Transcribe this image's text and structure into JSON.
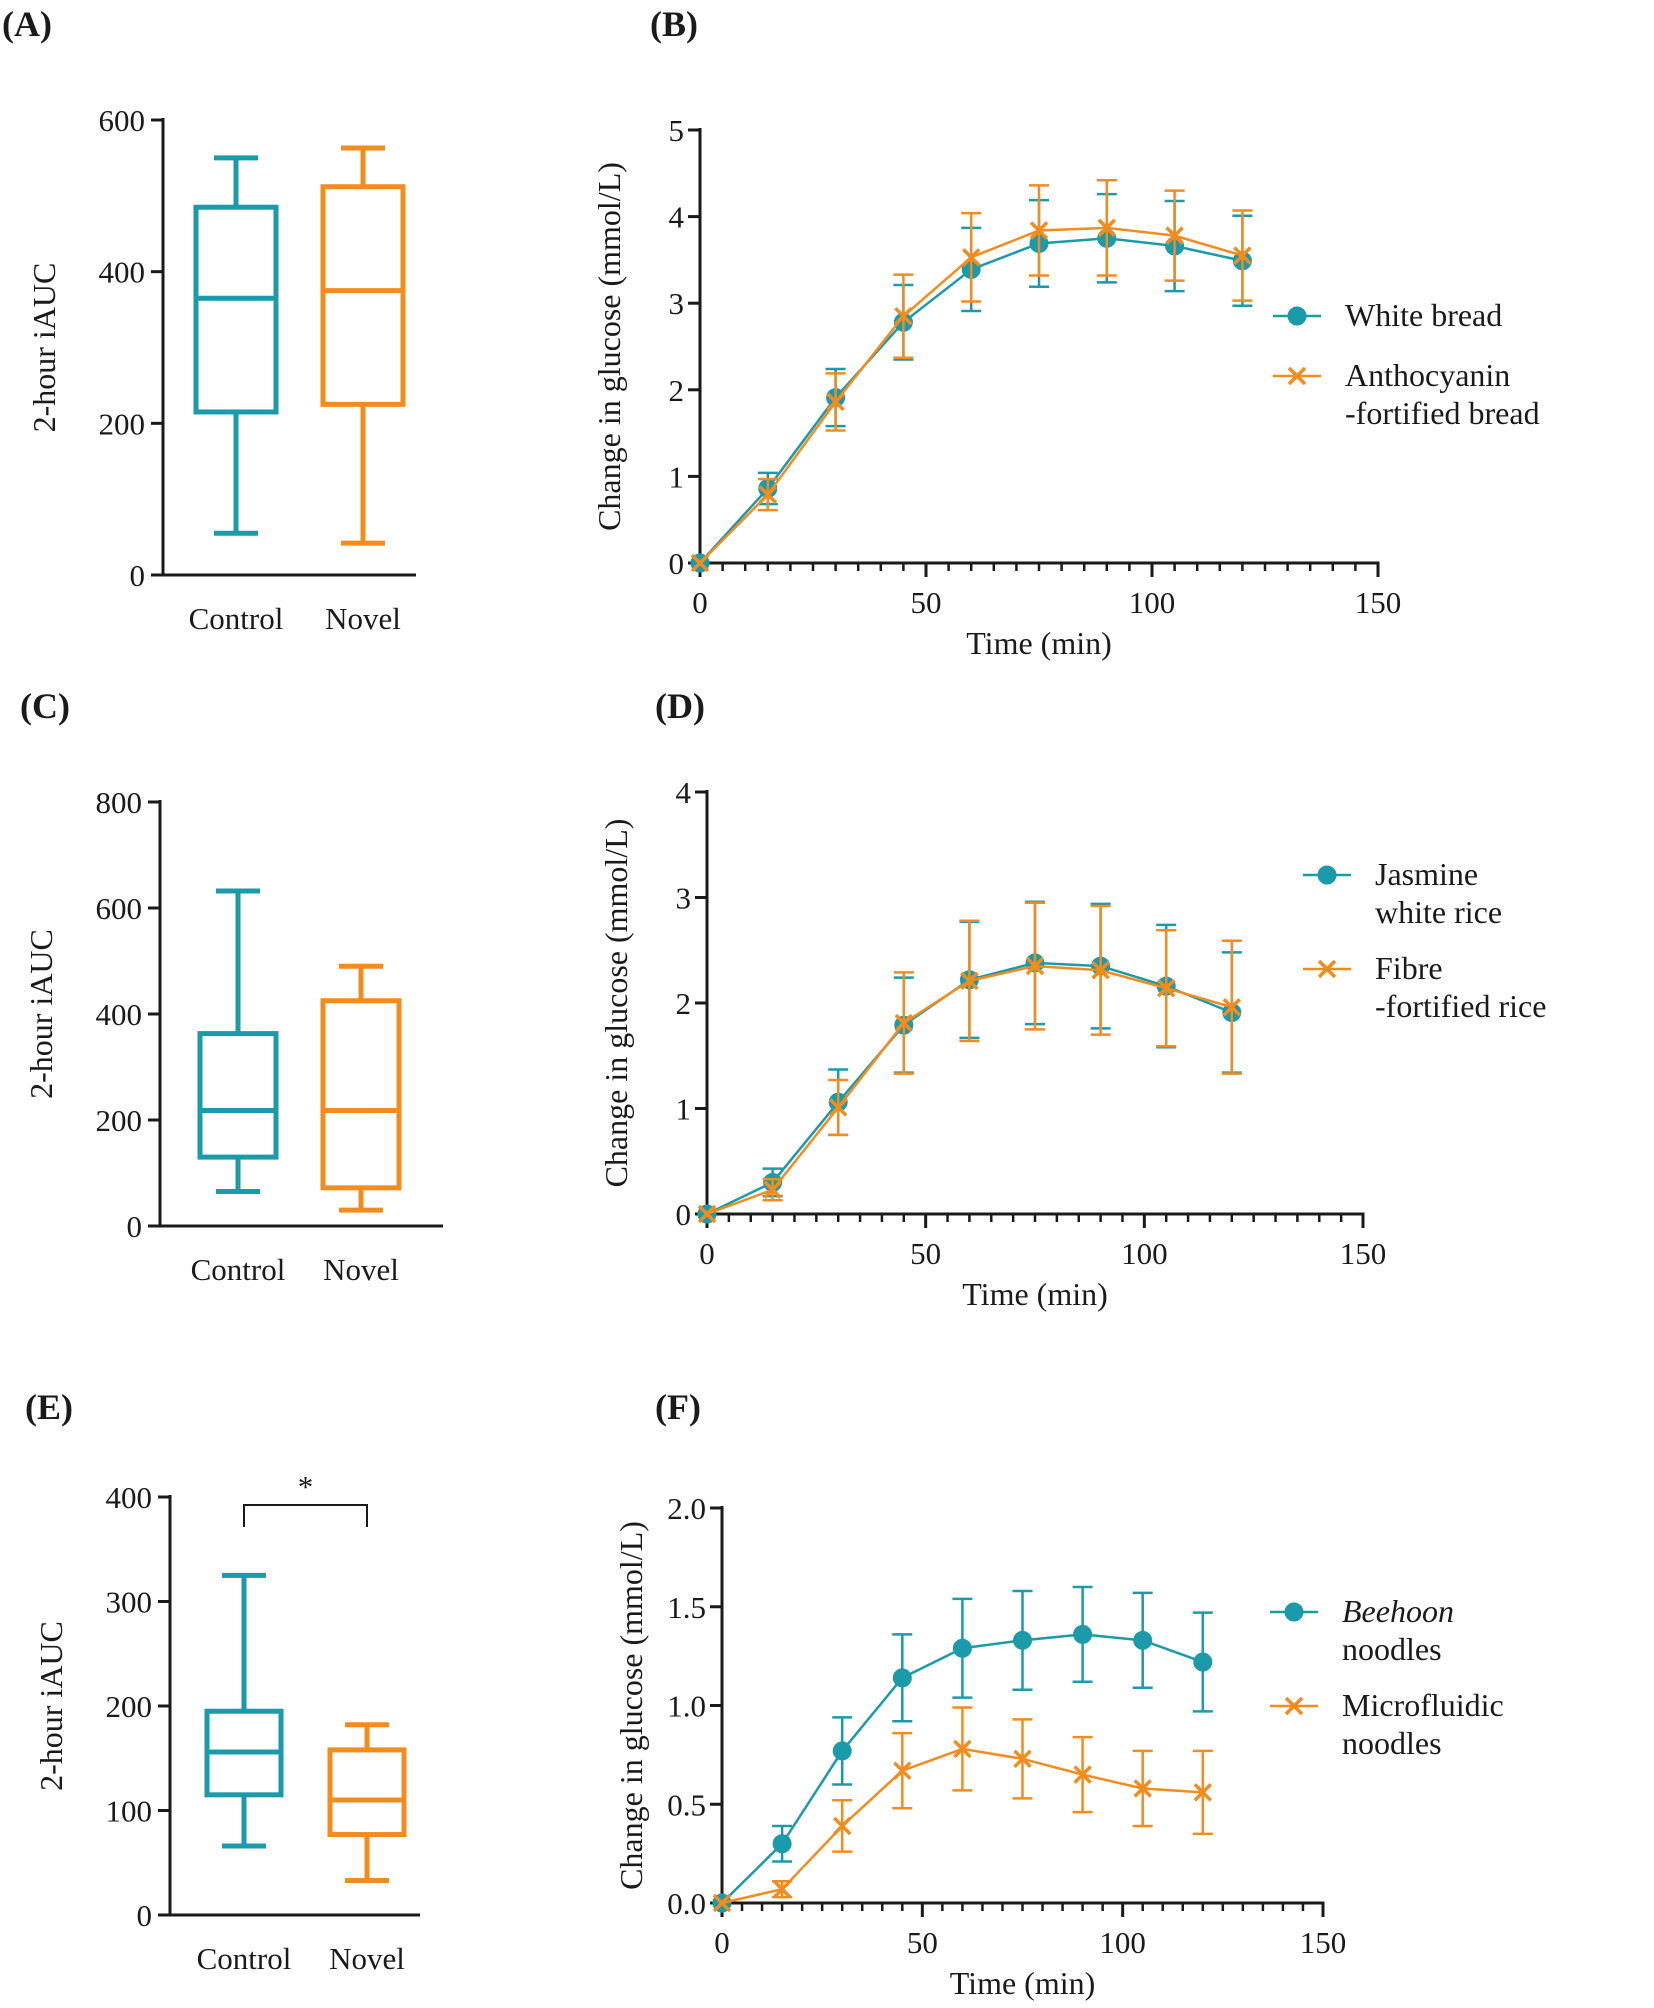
{
  "colors": {
    "teal": "#1b9aaa",
    "orange": "#f28c1e",
    "axis": "#1a1a1a"
  },
  "chart_data": [
    {
      "id": "A",
      "type": "box",
      "label": "(A)",
      "title": "",
      "ylabel": "2-hour iAUC",
      "xlabel": "",
      "ylim": [
        0,
        600
      ],
      "yticks": [
        0,
        200,
        400,
        600
      ],
      "categories": [
        "Control",
        "Novel"
      ],
      "boxes": [
        {
          "name": "Control",
          "min": 55,
          "q1": 215,
          "median": 365,
          "q3": 485,
          "max": 550,
          "color": "#1b9aaa"
        },
        {
          "name": "Novel",
          "min": 42,
          "q1": 225,
          "median": 375,
          "q3": 512,
          "max": 563,
          "color": "#f28c1e"
        }
      ],
      "annotations": []
    },
    {
      "id": "B",
      "type": "line",
      "label": "(B)",
      "title": "",
      "xlabel": "Time (min)",
      "ylabel": "Change in glucose (mmol/L)",
      "xlim": [
        0,
        150
      ],
      "ylim": [
        0,
        5
      ],
      "xticks": [
        0,
        50,
        100,
        150
      ],
      "yticks": [
        0,
        1,
        2,
        3,
        4,
        5
      ],
      "x": [
        0,
        15,
        30,
        45,
        60,
        75,
        90,
        105,
        120
      ],
      "series": [
        {
          "name": "White bread",
          "marker": "circle",
          "color": "#1b9aaa",
          "values": [
            0,
            0.86,
            1.91,
            2.78,
            3.39,
            3.69,
            3.75,
            3.66,
            3.49
          ],
          "errors": [
            0,
            0.18,
            0.33,
            0.43,
            0.48,
            0.5,
            0.51,
            0.52,
            0.52
          ]
        },
        {
          "name": "Anthocyanin\n-fortified bread",
          "marker": "cross",
          "color": "#f28c1e",
          "values": [
            0,
            0.79,
            1.86,
            2.85,
            3.53,
            3.84,
            3.87,
            3.78,
            3.55
          ],
          "errors": [
            0,
            0.18,
            0.33,
            0.48,
            0.51,
            0.52,
            0.55,
            0.52,
            0.52
          ]
        }
      ],
      "legend": [
        "White bread",
        "Anthocyanin",
        "-fortified bread"
      ]
    },
    {
      "id": "C",
      "type": "box",
      "label": "(C)",
      "title": "",
      "ylabel": "2-hour iAUC",
      "xlabel": "",
      "ylim": [
        0,
        800
      ],
      "yticks": [
        0,
        200,
        400,
        600,
        800
      ],
      "categories": [
        "Control",
        "Novel"
      ],
      "boxes": [
        {
          "name": "Control",
          "min": 65,
          "q1": 130,
          "median": 218,
          "q3": 363,
          "max": 632,
          "color": "#1b9aaa"
        },
        {
          "name": "Novel",
          "min": 30,
          "q1": 72,
          "median": 218,
          "q3": 425,
          "max": 490,
          "color": "#f28c1e"
        }
      ],
      "annotations": []
    },
    {
      "id": "D",
      "type": "line",
      "label": "(D)",
      "title": "",
      "xlabel": "Time (min)",
      "ylabel": "Change in glucose (mmol/L)",
      "xlim": [
        0,
        150
      ],
      "ylim": [
        0,
        4
      ],
      "xticks": [
        0,
        50,
        100,
        150
      ],
      "yticks": [
        0,
        1,
        2,
        3,
        4
      ],
      "x": [
        0,
        15,
        30,
        45,
        60,
        75,
        90,
        105,
        120
      ],
      "series": [
        {
          "name": "Jasmine\nwhite rice",
          "marker": "circle",
          "color": "#1b9aaa",
          "values": [
            0,
            0.3,
            1.06,
            1.79,
            2.22,
            2.38,
            2.35,
            2.16,
            1.91
          ],
          "errors": [
            0,
            0.13,
            0.31,
            0.45,
            0.55,
            0.58,
            0.59,
            0.58,
            0.57
          ]
        },
        {
          "name": "Fibre\n-fortified rice",
          "marker": "cross",
          "color": "#f28c1e",
          "values": [
            0,
            0.23,
            1.01,
            1.81,
            2.21,
            2.35,
            2.31,
            2.14,
            1.96
          ],
          "errors": [
            0,
            0.1,
            0.26,
            0.48,
            0.57,
            0.6,
            0.61,
            0.55,
            0.63
          ]
        }
      ],
      "legend": [
        "Jasmine",
        "white rice",
        "Fibre",
        "-fortified rice"
      ]
    },
    {
      "id": "E",
      "type": "box",
      "label": "(E)",
      "title": "",
      "ylabel": "2-hour iAUC",
      "xlabel": "",
      "ylim": [
        0,
        400
      ],
      "yticks": [
        0,
        100,
        200,
        300,
        400
      ],
      "categories": [
        "Control",
        "Novel"
      ],
      "boxes": [
        {
          "name": "Control",
          "min": 66,
          "q1": 115,
          "median": 156,
          "q3": 195,
          "max": 325,
          "color": "#1b9aaa"
        },
        {
          "name": "Novel",
          "min": 33,
          "q1": 77,
          "median": 110,
          "q3": 158,
          "max": 182,
          "color": "#f28c1e"
        }
      ],
      "annotations": [
        "*"
      ]
    },
    {
      "id": "F",
      "type": "line",
      "label": "(F)",
      "title": "",
      "xlabel": "Time (min)",
      "ylabel": "Change in glucose (mmol/L)",
      "xlim": [
        0,
        150
      ],
      "ylim": [
        0,
        2.0
      ],
      "xticks": [
        0,
        50,
        100,
        150
      ],
      "yticks": [
        0.0,
        0.5,
        1.0,
        1.5,
        2.0
      ],
      "ytick_labels": [
        "0.0",
        "0.5",
        "1.0",
        "1.5",
        "2.0"
      ],
      "x": [
        0,
        15,
        30,
        45,
        60,
        75,
        90,
        105,
        120
      ],
      "series": [
        {
          "name": "Beehoon noodles",
          "marker": "circle",
          "color": "#1b9aaa",
          "values": [
            0,
            0.3,
            0.77,
            1.14,
            1.29,
            1.33,
            1.36,
            1.33,
            1.22
          ],
          "errors": [
            0,
            0.09,
            0.17,
            0.22,
            0.25,
            0.25,
            0.24,
            0.24,
            0.25
          ]
        },
        {
          "name": "Microfluidic noodles",
          "marker": "cross",
          "color": "#f28c1e",
          "values": [
            0,
            0.07,
            0.39,
            0.67,
            0.78,
            0.73,
            0.65,
            0.58,
            0.56
          ],
          "errors": [
            0,
            0.04,
            0.13,
            0.19,
            0.21,
            0.2,
            0.19,
            0.19,
            0.21
          ]
        }
      ],
      "legend": [
        "Beehoon",
        "noodles",
        "Microfluidic",
        "noodles"
      ]
    }
  ]
}
